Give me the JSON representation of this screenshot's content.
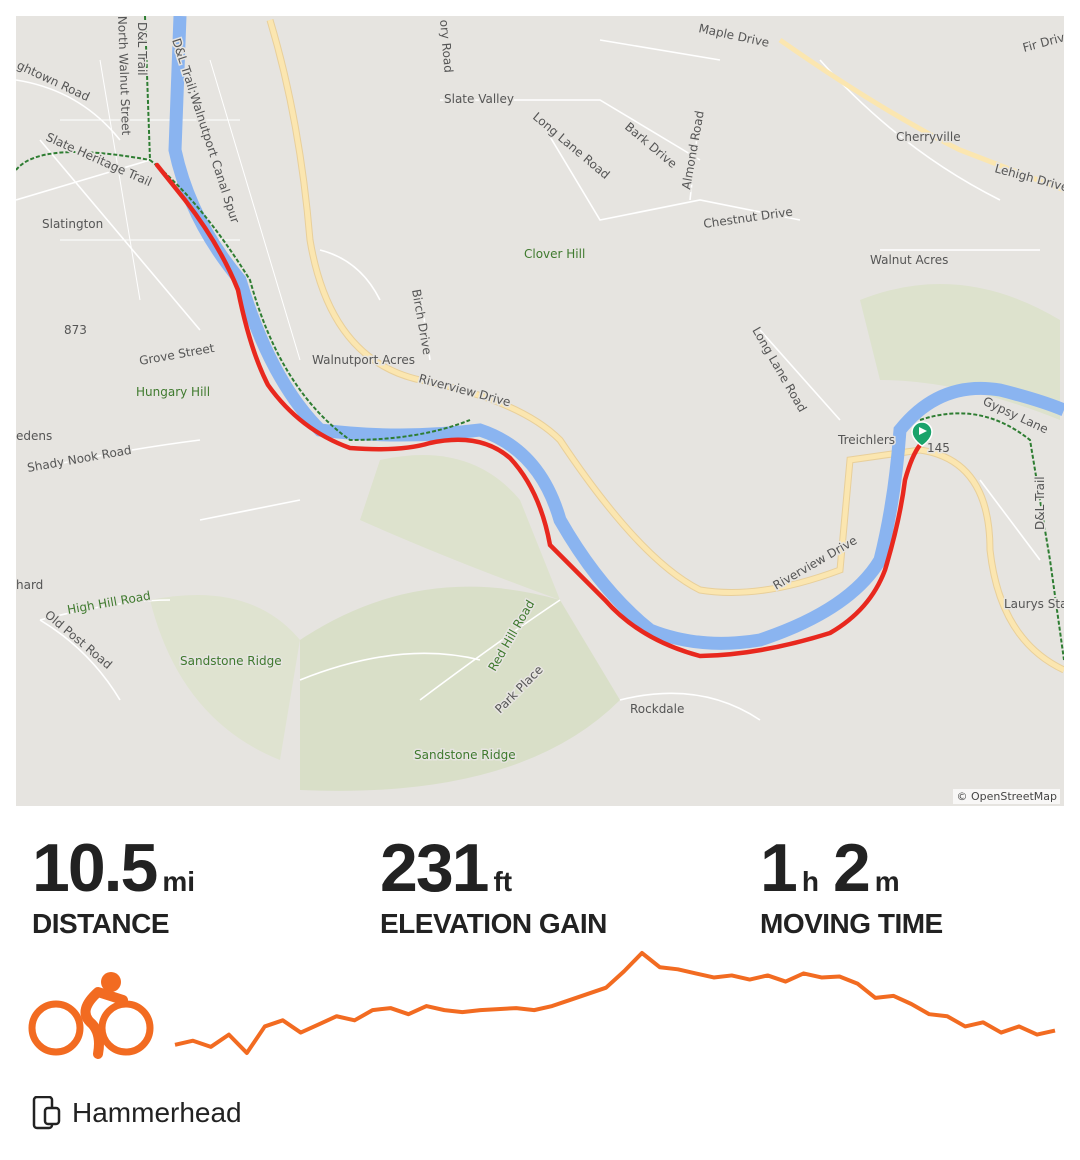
{
  "map": {
    "attribution": "© OpenStreetMap",
    "labels": [
      "Slatington",
      "Slate Heritage Trail",
      "D&L Trail",
      "D&L Trail;Walnutport Canal Spur",
      "North Walnut Street",
      "ghtown Road",
      "Grove Street",
      "Hungary Hill",
      "873",
      "Shady Nook Road",
      "edens",
      "Walnutport Acres",
      "Riverview Drive",
      "Birch Drive",
      "Slate Valley",
      "Long Lane Road",
      "Bark Drive",
      "Almond Road",
      "Chestnut Drive",
      "Clover Hill",
      "Maple Drive",
      "Cherryville",
      "Lehigh Drive",
      "Fir Drive",
      "Walnut Acres",
      "Long Lane Road",
      "Treichlers",
      "145",
      "Gypsy Lane",
      "D&L Trail",
      "Laurys Station",
      "Riverview Drive",
      "Red Hill Road",
      "Park Place",
      "Rockdale",
      "Sandstone Ridge",
      "Sandstone Ridge",
      "High Hill Road",
      "Old Post Road",
      "hard",
      "ory Road"
    ],
    "colors": {
      "route": "#e8281e",
      "river": "#8ab4f0",
      "major_road": "#fbe3a8",
      "trail": "#2e7d32",
      "start_marker": "#1aa36b"
    }
  },
  "stats": [
    {
      "value": "10.5",
      "unit": "mi",
      "label": "DISTANCE"
    },
    {
      "value": "231",
      "unit": "ft",
      "label": "ELEVATION GAIN"
    },
    {
      "value": "1",
      "unit": "h",
      "value2": "2",
      "unit2": "m",
      "label": "MOVING TIME"
    }
  ],
  "activity_type_icon": "cycling-icon",
  "accent_color": "#f26b21",
  "elevation_profile_relative": [
    10,
    14,
    8,
    20,
    2,
    28,
    34,
    22,
    30,
    38,
    34,
    44,
    46,
    40,
    48,
    44,
    42,
    44,
    45,
    46,
    44,
    48,
    54,
    60,
    66,
    82,
    100,
    86,
    84,
    80,
    76,
    78,
    74,
    78,
    72,
    80,
    76,
    77,
    70,
    56,
    58,
    50,
    40,
    38,
    28,
    32,
    22,
    28,
    20,
    24
  ],
  "device": {
    "icon": "device-icon",
    "name": "Hammerhead"
  }
}
